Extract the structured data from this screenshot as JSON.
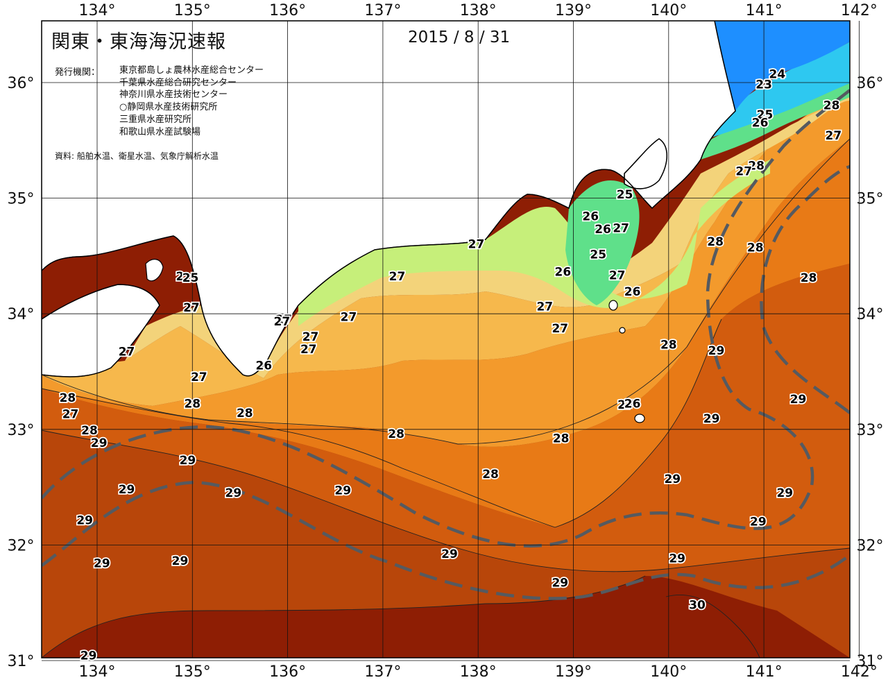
{
  "header": {
    "title": "関東・東海海況速報",
    "date": "2015 / 8 / 31"
  },
  "publishers": {
    "heading": "発行機関：",
    "items": [
      "東京都島しょ農林水産総合センター",
      "千葉県水産総合研究センター",
      "神奈川県水産技術センター",
      "○静岡県水産技術研究所",
      "三重県水産研究所",
      "和歌山県水産試験場"
    ]
  },
  "source": "資料: 船舶水温、衛星水温、気象庁解析水温",
  "axes": {
    "lon_labels": [
      "134°",
      "135°",
      "136°",
      "137°",
      "138°",
      "139°",
      "140°",
      "141°",
      "142°"
    ],
    "lat_labels": [
      "36°",
      "35°",
      "34°",
      "33°",
      "32°",
      "31°"
    ]
  },
  "colors": {
    "t23": "#1e8fff",
    "t24": "#2ec8f0",
    "t25": "#5fe08a",
    "t26": "#c6ef7a",
    "t27": "#f3d37a",
    "t27b": "#f6b84c",
    "t28": "#f39a2c",
    "t28b": "#e87a16",
    "t29": "#d25c0e",
    "t29b": "#b8460a",
    "t30": "#8e1e04",
    "land": "#ffffff",
    "kuroshio": "#555a60"
  },
  "isotherm_labels": [
    {
      "text": "23",
      "lon": 141.0,
      "lat": 35.99
    },
    {
      "text": "24",
      "lon": 141.14,
      "lat": 36.08
    },
    {
      "text": "25",
      "lon": 141.01,
      "lat": 35.73
    },
    {
      "text": "26",
      "lon": 140.96,
      "lat": 35.66
    },
    {
      "text": "28",
      "lon": 141.71,
      "lat": 35.81
    },
    {
      "text": "27",
      "lon": 141.73,
      "lat": 35.55
    },
    {
      "text": "28",
      "lon": 140.92,
      "lat": 35.29
    },
    {
      "text": "27",
      "lon": 140.79,
      "lat": 35.24
    },
    {
      "text": "25",
      "lon": 139.54,
      "lat": 35.04
    },
    {
      "text": "26",
      "lon": 139.18,
      "lat": 34.85
    },
    {
      "text": "26",
      "lon": 139.31,
      "lat": 34.74
    },
    {
      "text": "27",
      "lon": 139.5,
      "lat": 34.75
    },
    {
      "text": "25",
      "lon": 139.26,
      "lat": 34.52
    },
    {
      "text": "27",
      "lon": 139.46,
      "lat": 34.34
    },
    {
      "text": "26",
      "lon": 139.62,
      "lat": 34.2
    },
    {
      "text": "26",
      "lon": 138.89,
      "lat": 34.37
    },
    {
      "text": "27",
      "lon": 137.98,
      "lat": 34.61
    },
    {
      "text": "27",
      "lon": 137.15,
      "lat": 34.33
    },
    {
      "text": "27",
      "lon": 138.7,
      "lat": 34.07
    },
    {
      "text": "27",
      "lon": 138.86,
      "lat": 33.88
    },
    {
      "text": "27",
      "lon": 136.64,
      "lat": 33.98
    },
    {
      "text": "27",
      "lon": 136.24,
      "lat": 33.81
    },
    {
      "text": "27",
      "lon": 136.22,
      "lat": 33.7
    },
    {
      "text": "26",
      "lon": 135.75,
      "lat": 33.56
    },
    {
      "text": "28",
      "lon": 140.0,
      "lat": 33.74
    },
    {
      "text": "28",
      "lon": 140.49,
      "lat": 34.63
    },
    {
      "text": "28",
      "lon": 140.91,
      "lat": 34.58
    },
    {
      "text": "28",
      "lon": 141.47,
      "lat": 34.32
    },
    {
      "text": "29",
      "lon": 140.5,
      "lat": 33.69
    },
    {
      "text": "29",
      "lon": 141.36,
      "lat": 33.27
    },
    {
      "text": "29",
      "lon": 140.45,
      "lat": 33.1
    },
    {
      "text": "27",
      "lon": 135.96,
      "lat": 33.96
    },
    {
      "text": "27",
      "lon": 135.94,
      "lat": 33.94
    },
    {
      "text": "27",
      "lon": 139.55,
      "lat": 33.22
    },
    {
      "text": "26",
      "lon": 139.62,
      "lat": 33.23
    },
    {
      "text": "27",
      "lon": 134.31,
      "lat": 33.68
    },
    {
      "text": "27",
      "lon": 134.99,
      "lat": 34.06
    },
    {
      "text": "2",
      "lon": 134.87,
      "lat": 34.33
    },
    {
      "text": "25",
      "lon": 134.98,
      "lat": 34.32
    },
    {
      "text": "27",
      "lon": 135.07,
      "lat": 33.46
    },
    {
      "text": "28",
      "lon": 135.0,
      "lat": 33.23
    },
    {
      "text": "28",
      "lon": 133.69,
      "lat": 33.28
    },
    {
      "text": "27",
      "lon": 133.72,
      "lat": 33.14
    },
    {
      "text": "28",
      "lon": 133.92,
      "lat": 33.0
    },
    {
      "text": "29",
      "lon": 134.02,
      "lat": 32.89
    },
    {
      "text": "28",
      "lon": 135.55,
      "lat": 33.15
    },
    {
      "text": "28",
      "lon": 137.14,
      "lat": 32.97
    },
    {
      "text": "28",
      "lon": 138.87,
      "lat": 32.93
    },
    {
      "text": "28",
      "lon": 138.13,
      "lat": 32.62
    },
    {
      "text": "29",
      "lon": 134.95,
      "lat": 32.74
    },
    {
      "text": "29",
      "lon": 134.31,
      "lat": 32.49
    },
    {
      "text": "29",
      "lon": 135.43,
      "lat": 32.46
    },
    {
      "text": "29",
      "lon": 136.58,
      "lat": 32.48
    },
    {
      "text": "29",
      "lon": 133.87,
      "lat": 32.22
    },
    {
      "text": "29",
      "lon": 134.05,
      "lat": 31.85
    },
    {
      "text": "29",
      "lon": 134.87,
      "lat": 31.87
    },
    {
      "text": "29",
      "lon": 137.7,
      "lat": 31.93
    },
    {
      "text": "29",
      "lon": 138.86,
      "lat": 31.68
    },
    {
      "text": "29",
      "lon": 140.04,
      "lat": 32.58
    },
    {
      "text": "29",
      "lon": 140.94,
      "lat": 32.21
    },
    {
      "text": "29",
      "lon": 141.22,
      "lat": 32.46
    },
    {
      "text": "29",
      "lon": 140.09,
      "lat": 31.89
    },
    {
      "text": "30",
      "lon": 140.3,
      "lat": 31.49
    },
    {
      "text": "29",
      "lon": 133.91,
      "lat": 31.05
    }
  ]
}
